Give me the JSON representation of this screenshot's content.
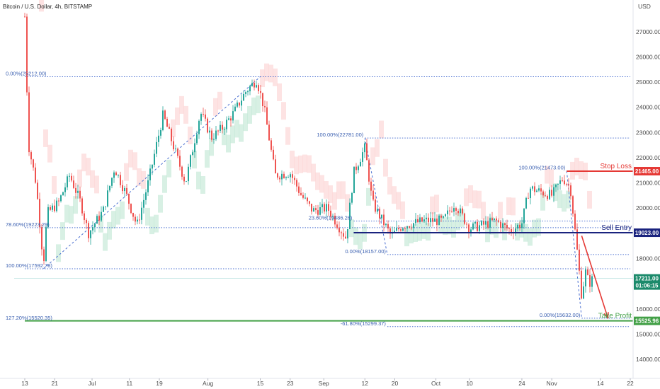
{
  "header": {
    "symbol": "Bitcoin / U.S. Dollar, 4h, BITSTAMP",
    "currency": "USD"
  },
  "colors": {
    "bull": "#26a69a",
    "bear": "#ef5350",
    "fib": "#4a6fd0",
    "stop": "#e53935",
    "entry": "#1a237e",
    "target": "#43a047",
    "cloud_bull": "#c8ead8",
    "cloud_bear": "#fcd7d7"
  },
  "chart_data": {
    "type": "candlestick",
    "title": "Bitcoin / U.S. Dollar, 4h, BITSTAMP",
    "ylim": [
      13300,
      28200
    ],
    "xlim": [
      "2022-06-13",
      "2022-11-22"
    ],
    "y_ticks": [
      14000,
      15000,
      16000,
      17000,
      18000,
      19000,
      20000,
      21000,
      22000,
      23000,
      24000,
      25000,
      26000,
      27000
    ],
    "x_ticks": [
      {
        "label": "13",
        "date": "2022-06-13"
      },
      {
        "label": "21",
        "date": "2022-06-21"
      },
      {
        "label": "Jul",
        "date": "2022-07-01"
      },
      {
        "label": "11",
        "date": "2022-07-11"
      },
      {
        "label": "19",
        "date": "2022-07-19"
      },
      {
        "label": "Aug",
        "date": "2022-08-01"
      },
      {
        "label": "15",
        "date": "2022-08-15"
      },
      {
        "label": "23",
        "date": "2022-08-23"
      },
      {
        "label": "Sep",
        "date": "2022-09-01"
      },
      {
        "label": "12",
        "date": "2022-09-12"
      },
      {
        "label": "20",
        "date": "2022-09-20"
      },
      {
        "label": "Oct",
        "date": "2022-10-01"
      },
      {
        "label": "10",
        "date": "2022-10-10"
      },
      {
        "label": "24",
        "date": "2022-10-24"
      },
      {
        "label": "Nov",
        "date": "2022-11-01"
      },
      {
        "label": "14",
        "date": "2022-11-14"
      },
      {
        "label": "22",
        "date": "2022-11-22"
      }
    ],
    "price_path": [
      [
        "2022-06-13",
        27600
      ],
      [
        "2022-06-14",
        22500
      ],
      [
        "2022-06-16",
        21000
      ],
      [
        "2022-06-18",
        17800
      ],
      [
        "2022-06-19",
        19800
      ],
      [
        "2022-06-22",
        20200
      ],
      [
        "2022-06-25",
        21300
      ],
      [
        "2022-06-28",
        20200
      ],
      [
        "2022-06-30",
        19000
      ],
      [
        "2022-07-04",
        19900
      ],
      [
        "2022-07-07",
        21600
      ],
      [
        "2022-07-10",
        20600
      ],
      [
        "2022-07-13",
        19300
      ],
      [
        "2022-07-16",
        21000
      ],
      [
        "2022-07-20",
        23700
      ],
      [
        "2022-07-22",
        22800
      ],
      [
        "2022-07-26",
        21000
      ],
      [
        "2022-07-30",
        23800
      ],
      [
        "2022-08-02",
        22800
      ],
      [
        "2022-08-05",
        23200
      ],
      [
        "2022-08-08",
        23800
      ],
      [
        "2022-08-11",
        24600
      ],
      [
        "2022-08-14",
        25100
      ],
      [
        "2022-08-16",
        24000
      ],
      [
        "2022-08-19",
        21300
      ],
      [
        "2022-08-23",
        21400
      ],
      [
        "2022-08-26",
        20500
      ],
      [
        "2022-08-29",
        19900
      ],
      [
        "2022-09-02",
        20000
      ],
      [
        "2022-09-07",
        18800
      ],
      [
        "2022-09-09",
        21400
      ],
      [
        "2022-09-12",
        22400
      ],
      [
        "2022-09-14",
        20200
      ],
      [
        "2022-09-19",
        18900
      ],
      [
        "2022-09-22",
        19300
      ],
      [
        "2022-09-28",
        19500
      ],
      [
        "2022-10-03",
        19500
      ],
      [
        "2022-10-06",
        20200
      ],
      [
        "2022-10-10",
        19200
      ],
      [
        "2022-10-13",
        19300
      ],
      [
        "2022-10-17",
        19500
      ],
      [
        "2022-10-21",
        19100
      ],
      [
        "2022-10-24",
        19400
      ],
      [
        "2022-10-26",
        20800
      ],
      [
        "2022-10-30",
        20600
      ],
      [
        "2022-11-01",
        20500
      ],
      [
        "2022-11-04",
        21200
      ],
      [
        "2022-11-06",
        20800
      ],
      [
        "2022-11-08",
        18000
      ],
      [
        "2022-11-09",
        16500
      ],
      [
        "2022-11-10",
        17500
      ],
      [
        "2022-11-11",
        17000
      ],
      [
        "2022-11-12",
        17211
      ]
    ],
    "horizontal_levels": [
      {
        "label": "0.00%(25212.00)",
        "price": 25212,
        "from": "2022-06-13",
        "to": "2022-11-22"
      },
      {
        "label": "78.60%(19223.29)",
        "price": 19223,
        "from": "2022-06-13",
        "to": "2022-11-22"
      },
      {
        "label": "100.00%(17592.78)",
        "price": 17593,
        "from": "2022-06-13",
        "to": "2022-11-22"
      },
      {
        "label": "127.20%(15520.35)",
        "price": 15520,
        "from": "2022-06-13",
        "to": "2022-11-22"
      },
      {
        "label": "100.00%(22781.00)",
        "price": 22781,
        "from": "2022-09-12",
        "to": "2022-11-22"
      },
      {
        "label": "23.60%(19486.26)",
        "price": 19486,
        "from": "2022-09-09",
        "to": "2022-11-22"
      },
      {
        "label": "0.00%(18157.00)",
        "price": 18157,
        "from": "2022-09-18",
        "to": "2022-11-22"
      },
      {
        "label": "100.00%(21473.00)",
        "price": 21473,
        "from": "2022-11-05",
        "to": "2022-11-22"
      },
      {
        "label": "0.00%(15632.00)",
        "price": 15632,
        "from": "2022-11-09",
        "to": "2022-11-22"
      },
      {
        "label": "-61.80%(15299.37)",
        "price": 15299,
        "from": "2022-09-18",
        "to": "2022-11-22"
      }
    ],
    "trade_levels": [
      {
        "label": "Stop Loss",
        "price": 21465,
        "tag": "21465.00",
        "role": "stop"
      },
      {
        "label": "Sell Entry",
        "price": 19023,
        "tag": "19023.00",
        "role": "entry"
      },
      {
        "label": "Take Profit",
        "price": 15526,
        "tag": "15525.96",
        "role": "target"
      }
    ],
    "current_price": {
      "price": 17211,
      "tag": "17211.00",
      "countdown": "01:06:15"
    },
    "trend_lines": [
      {
        "from": [
          "2022-06-18",
          17593
        ],
        "to": [
          "2022-08-15",
          25212
        ]
      },
      {
        "from": [
          "2022-09-12",
          22781
        ],
        "to": [
          "2022-09-18",
          18157
        ]
      },
      {
        "from": [
          "2022-11-05",
          21473
        ],
        "to": [
          "2022-11-09",
          15632
        ]
      }
    ],
    "arrow": {
      "from": [
        "2022-11-09",
        18900
      ],
      "to": [
        "2022-11-16",
        15650
      ]
    }
  }
}
